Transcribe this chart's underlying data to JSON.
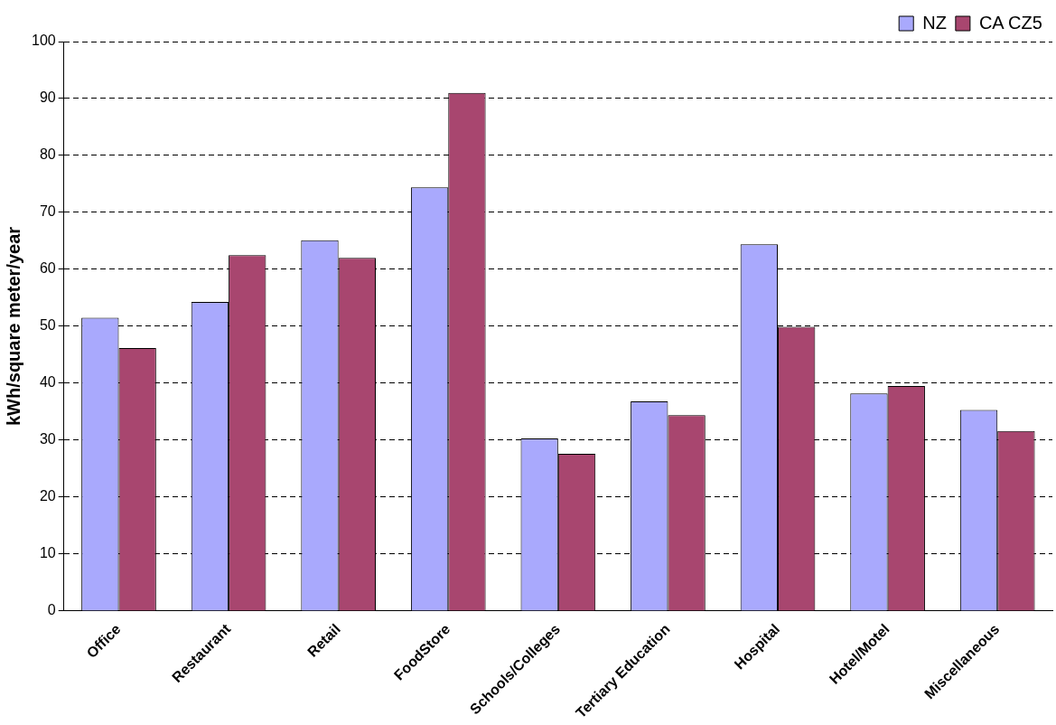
{
  "chart_data": {
    "type": "bar",
    "ylabel": "kWh/square meter/year",
    "categories": [
      "Office",
      "Restaurant",
      "Retail",
      "FoodStore",
      "Schools/Colleges",
      "Tertiary Education",
      "Hospital",
      "Hotel/Motel",
      "Miscellaneous"
    ],
    "series": [
      {
        "name": "NZ",
        "color": "#a9a9fd",
        "values": [
          51.5,
          54.3,
          65.1,
          74.4,
          30.3,
          36.8,
          64.4,
          38.2,
          35.3
        ]
      },
      {
        "name": "CA CZ5",
        "color": "#a8466f",
        "values": [
          46.2,
          62.5,
          62.0,
          91.0,
          27.6,
          34.4,
          49.9,
          39.5,
          31.6
        ]
      }
    ],
    "ylim": [
      0,
      100
    ],
    "yticks": [
      0,
      10,
      20,
      30,
      40,
      50,
      60,
      70,
      80,
      90,
      100
    ],
    "grid": "y",
    "legend": "top right",
    "line_style": "dashed"
  }
}
